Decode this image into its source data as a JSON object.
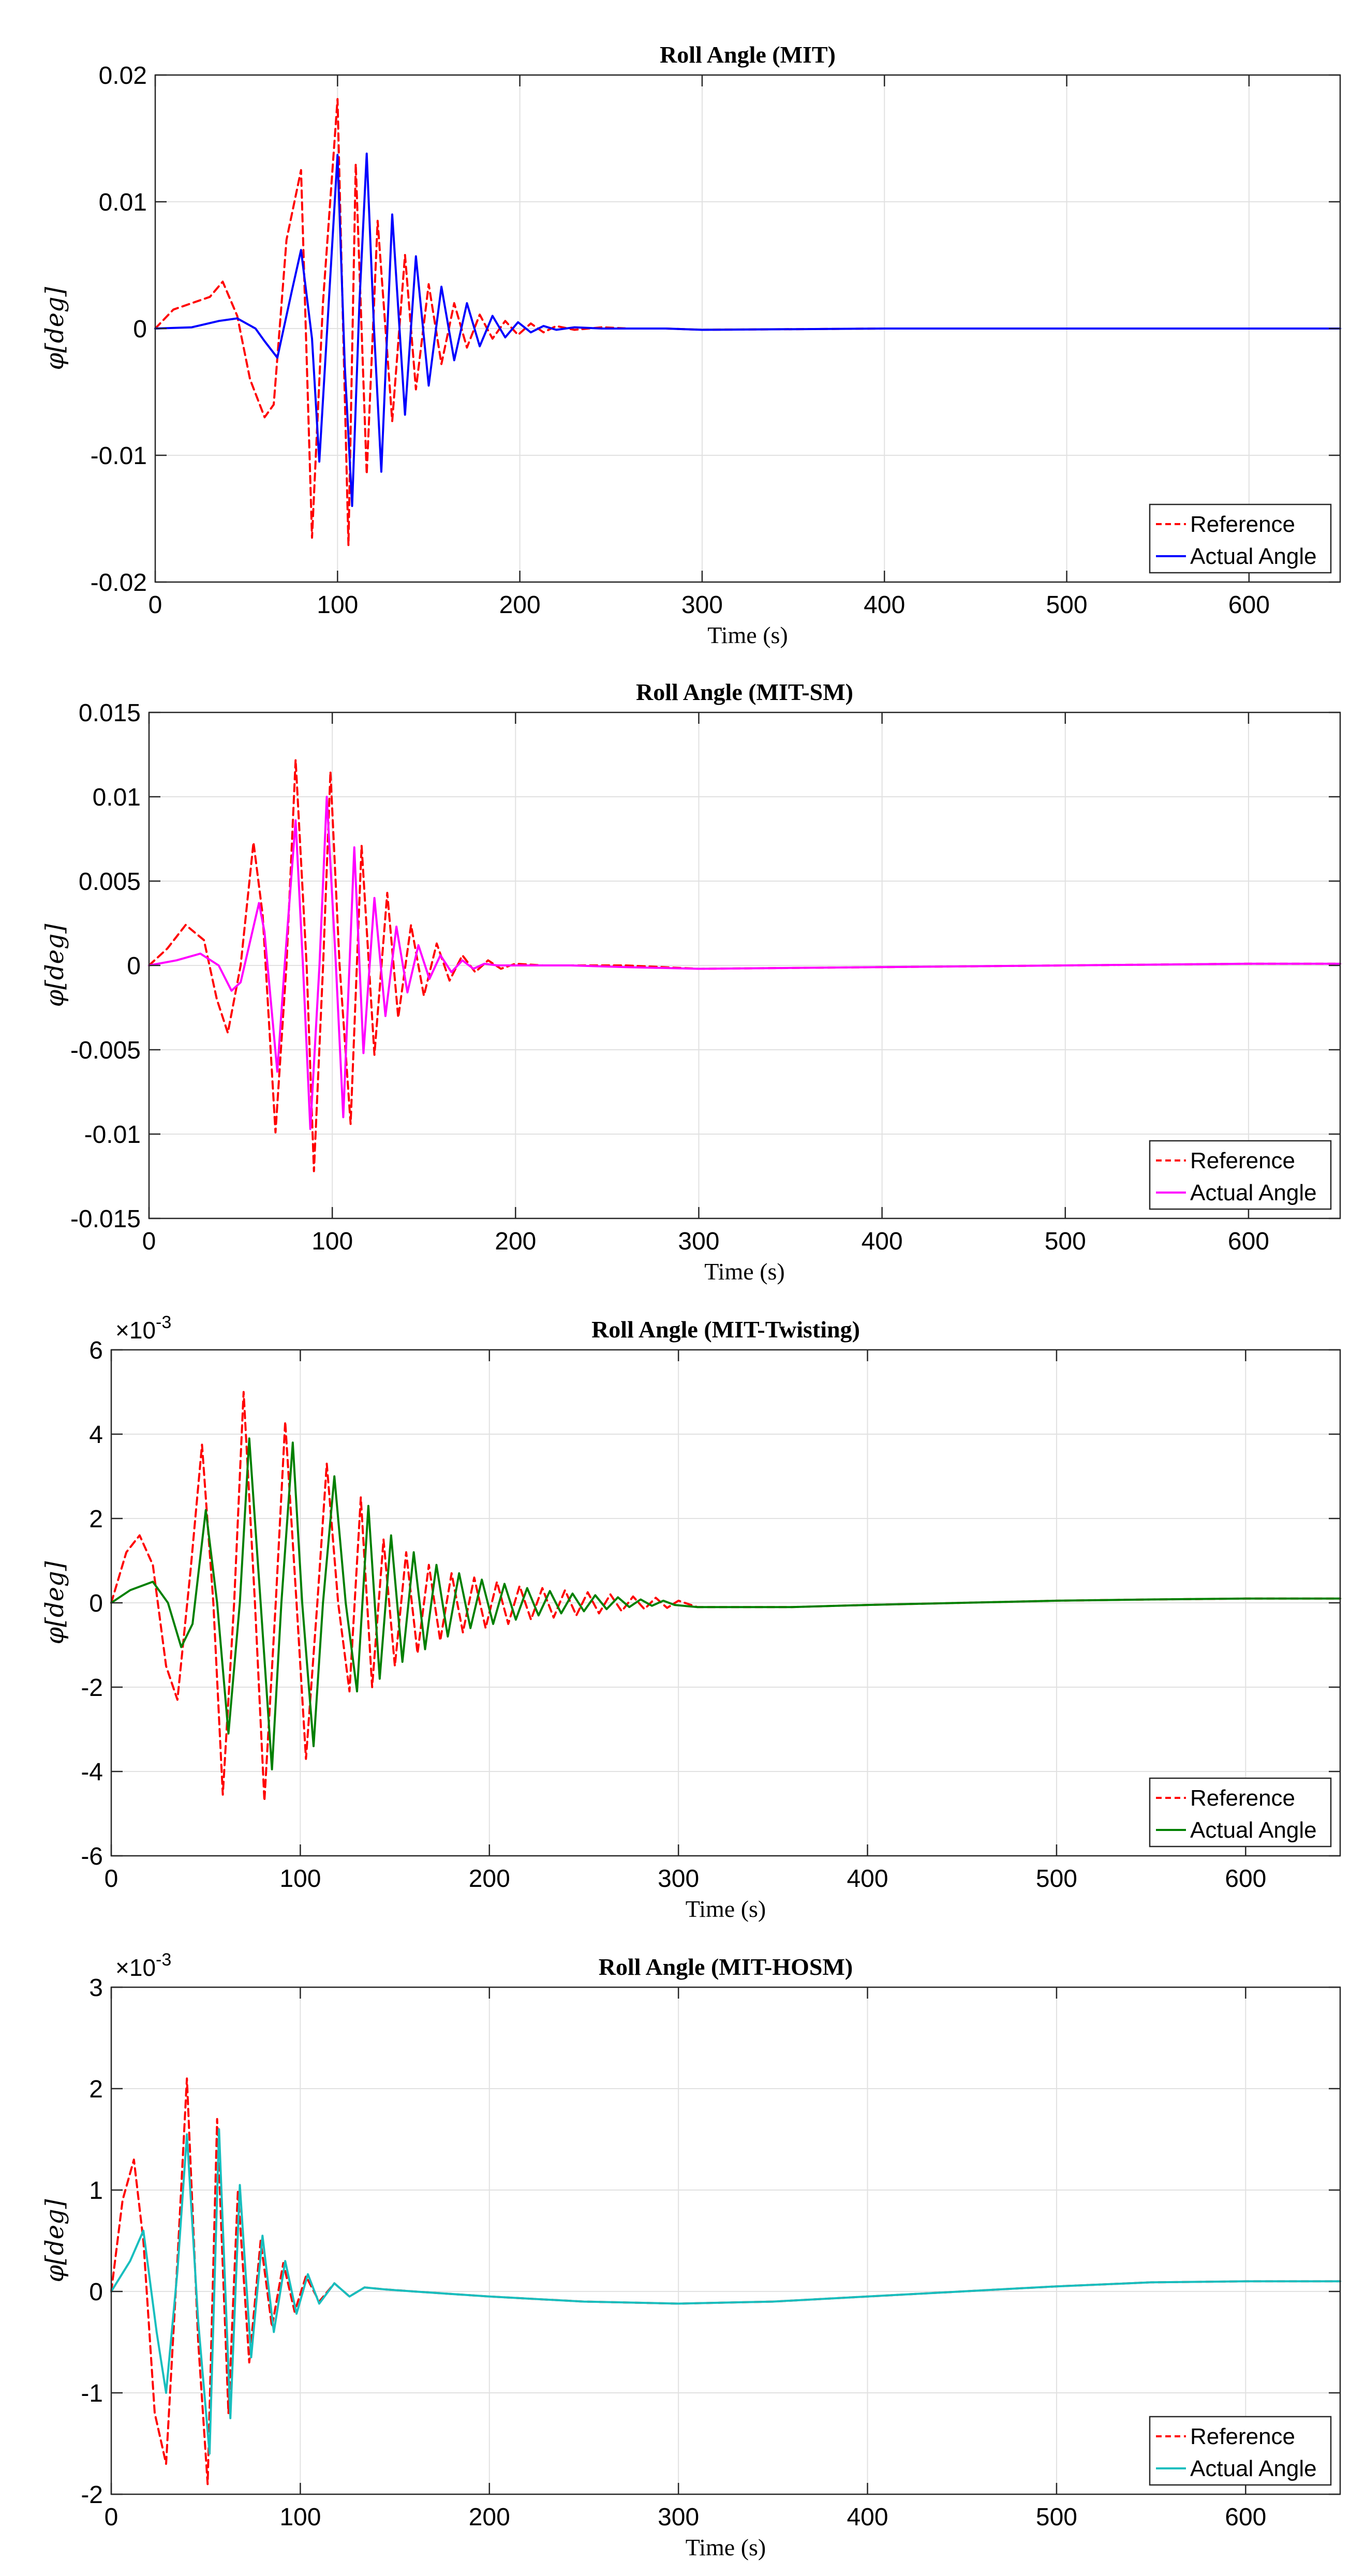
{
  "chart_data": [
    {
      "type": "line",
      "title": "Roll Angle (MIT)",
      "xlabel": "Time (s)",
      "ylabel": "φ[deg]",
      "xlim": [
        0,
        650
      ],
      "ylim": [
        -0.02,
        0.02
      ],
      "xticks": [
        0,
        100,
        200,
        300,
        400,
        500,
        600
      ],
      "xtick_labels": [
        "0",
        "100",
        "200",
        "300",
        "400",
        "500",
        "600"
      ],
      "yticks": [
        -0.02,
        -0.01,
        0,
        0.01,
        0.02
      ],
      "ytick_labels": [
        "-0.02",
        "-0.01",
        "0",
        "0.01",
        "0.02"
      ],
      "exponent_label": "",
      "grid": true,
      "legend_position": "bottom-right",
      "series": [
        {
          "name": "Reference",
          "style": "dashed",
          "color": "#ff0000",
          "x": [
            0,
            10,
            20,
            30,
            37,
            45,
            52,
            60,
            65,
            72,
            80,
            86,
            92,
            100,
            106,
            110,
            116,
            122,
            130,
            137,
            143,
            150,
            157,
            164,
            171,
            178,
            185,
            192,
            199,
            206,
            213,
            220,
            230,
            245,
            260,
            280,
            300,
            400,
            500,
            600,
            650
          ],
          "values": [
            0,
            0.0015,
            0.002,
            0.0025,
            0.0037,
            0.001,
            -0.004,
            -0.007,
            -0.006,
            0.007,
            0.0125,
            -0.0165,
            0.002,
            0.0181,
            -0.0171,
            0.013,
            -0.0115,
            0.0085,
            -0.0073,
            0.0058,
            -0.0048,
            0.0035,
            -0.0028,
            0.002,
            -0.0015,
            0.0011,
            -0.0008,
            0.0006,
            -0.0005,
            0.0004,
            -0.0003,
            0.0002,
            -0.0001,
            0.0001,
            0,
            0,
            -0.0001,
            0,
            0,
            0,
            0
          ]
        },
        {
          "name": "Actual Angle",
          "style": "solid",
          "color": "#0000ff",
          "x": [
            0,
            20,
            35,
            45,
            55,
            60,
            67,
            75,
            80,
            86,
            90,
            96,
            100,
            104,
            108,
            112,
            116,
            120,
            124,
            130,
            137,
            143,
            150,
            157,
            164,
            171,
            178,
            185,
            192,
            199,
            206,
            213,
            220,
            230,
            245,
            260,
            280,
            300,
            400,
            500,
            600,
            650
          ],
          "values": [
            0,
            0.0001,
            0.0006,
            0.0008,
            0,
            -0.001,
            -0.0023,
            0.003,
            0.0062,
            -0.0008,
            -0.0105,
            0.004,
            0.0137,
            -0.003,
            -0.014,
            0.002,
            0.0138,
            0,
            -0.0113,
            0.009,
            -0.0068,
            0.0057,
            -0.0045,
            0.0033,
            -0.0025,
            0.002,
            -0.0014,
            0.001,
            -0.0007,
            0.0005,
            -0.0003,
            0.0002,
            -0.0001,
            0.0001,
            0,
            0,
            0,
            -0.0001,
            0,
            0,
            0,
            0
          ]
        }
      ]
    },
    {
      "type": "line",
      "title": "Roll Angle (MIT-SM)",
      "xlabel": "Time (s)",
      "ylabel": "φ[deg]",
      "xlim": [
        0,
        650
      ],
      "ylim": [
        -0.015,
        0.015
      ],
      "xticks": [
        0,
        100,
        200,
        300,
        400,
        500,
        600
      ],
      "xtick_labels": [
        "0",
        "100",
        "200",
        "300",
        "400",
        "500",
        "600"
      ],
      "yticks": [
        -0.015,
        -0.01,
        -0.005,
        0,
        0.005,
        0.01,
        0.015
      ],
      "ytick_labels": [
        "-0.015",
        "-0.01",
        "-0.005",
        "0",
        "0.005",
        "0.01",
        "0.015"
      ],
      "exponent_label": "",
      "grid": true,
      "legend_position": "bottom-right",
      "series": [
        {
          "name": "Reference",
          "style": "dashed",
          "color": "#ff0000",
          "x": [
            0,
            10,
            20,
            30,
            37,
            43,
            50,
            57,
            62,
            69,
            75,
            80,
            86,
            90,
            95,
            99,
            104,
            110,
            116,
            123,
            130,
            136,
            143,
            150,
            157,
            164,
            171,
            178,
            185,
            192,
            200,
            215,
            230,
            260,
            300,
            400,
            500,
            600,
            650
          ],
          "values": [
            0,
            0.001,
            0.0024,
            0.0015,
            -0.002,
            -0.004,
            0,
            0.0073,
            0.003,
            -0.0099,
            0,
            0.0122,
            0,
            -0.0122,
            0,
            0.0115,
            0,
            -0.0094,
            0.0071,
            -0.0053,
            0.0043,
            -0.0031,
            0.0024,
            -0.0018,
            0.0013,
            -0.0009,
            0.0006,
            -0.0004,
            0.0003,
            -0.0002,
            0.0001,
            0,
            0,
            0,
            -0.0002,
            -0.0001,
            0,
            0.0001,
            0.0001
          ]
        },
        {
          "name": "Actual Angle",
          "style": "solid",
          "color": "#ff00ff",
          "x": [
            0,
            15,
            28,
            38,
            45,
            50,
            60,
            63,
            70,
            74,
            80,
            84,
            88,
            93,
            97,
            102,
            106,
            112,
            117,
            123,
            129,
            135,
            141,
            147,
            153,
            159,
            165,
            171,
            177,
            183,
            190,
            200,
            215,
            230,
            260,
            300,
            400,
            500,
            600,
            650
          ],
          "values": [
            0,
            0.0003,
            0.0007,
            0,
            -0.0015,
            -0.001,
            0.0037,
            0.002,
            -0.0063,
            0,
            0.0086,
            0,
            -0.0097,
            0,
            0.01,
            0,
            -0.009,
            0.007,
            -0.0052,
            0.004,
            -0.003,
            0.0023,
            -0.0016,
            0.0012,
            -0.0008,
            0.0006,
            -0.0004,
            0.0003,
            -0.0002,
            0.0001,
            0,
            0,
            0,
            0,
            -0.0001,
            -0.0002,
            -0.0001,
            0,
            0.0001,
            0.0001
          ]
        }
      ]
    },
    {
      "type": "line",
      "title": "Roll Angle (MIT-Twisting)",
      "xlabel": "Time (s)",
      "ylabel": "φ[deg]",
      "xlim": [
        0,
        650
      ],
      "ylim": [
        -6,
        6
      ],
      "xticks": [
        0,
        100,
        200,
        300,
        400,
        500,
        600
      ],
      "xtick_labels": [
        "0",
        "100",
        "200",
        "300",
        "400",
        "500",
        "600"
      ],
      "yticks": [
        -6,
        -4,
        -2,
        0,
        2,
        4,
        6
      ],
      "ytick_labels": [
        "-6",
        "-4",
        "-2",
        "0",
        "2",
        "4",
        "6"
      ],
      "exponent_label": "×10",
      "exponent_power": "-3",
      "grid": true,
      "legend_position": "bottom-right",
      "series": [
        {
          "name": "Reference",
          "style": "dashed",
          "color": "#ff0000",
          "x": [
            0,
            8,
            15,
            22,
            29,
            35,
            42,
            48,
            54,
            59,
            65,
            70,
            76,
            81,
            87,
            92,
            98,
            103,
            109,
            114,
            120,
            126,
            132,
            138,
            144,
            150,
            156,
            162,
            168,
            174,
            180,
            186,
            192,
            198,
            204,
            210,
            216,
            222,
            228,
            234,
            240,
            246,
            252,
            258,
            264,
            270,
            276,
            282,
            288,
            294,
            300,
            310,
            330,
            360,
            400,
            450,
            500,
            550,
            600,
            650
          ],
          "values": [
            0,
            1.2,
            1.6,
            0.9,
            -1.5,
            -2.3,
            0.8,
            3.75,
            0,
            -4.55,
            0,
            5.0,
            0,
            -4.7,
            0,
            4.3,
            0,
            -3.7,
            0,
            3.3,
            0,
            -2.1,
            2.5,
            -2.0,
            1.5,
            -1.5,
            1.2,
            -1.2,
            0.9,
            -0.9,
            0.7,
            -0.7,
            0.6,
            -0.6,
            0.5,
            -0.5,
            0.4,
            -0.4,
            0.35,
            -0.35,
            0.3,
            -0.3,
            0.25,
            -0.25,
            0.2,
            -0.2,
            0.15,
            -0.15,
            0.12,
            -0.12,
            0.05,
            -0.1,
            -0.1,
            -0.1,
            -0.05,
            0,
            0.05,
            0.08,
            0.1,
            0.1
          ]
        },
        {
          "name": "Actual Angle",
          "style": "solid",
          "color": "#008000",
          "x": [
            0,
            10,
            22,
            30,
            37,
            43,
            50,
            56,
            62,
            68,
            73,
            79,
            85,
            90,
            96,
            101,
            107,
            112,
            118,
            124,
            130,
            136,
            142,
            148,
            154,
            160,
            166,
            172,
            178,
            184,
            190,
            196,
            202,
            208,
            214,
            220,
            226,
            232,
            238,
            244,
            250,
            256,
            262,
            268,
            274,
            280,
            286,
            292,
            298,
            310,
            330,
            360,
            400,
            450,
            500,
            550,
            600,
            650
          ],
          "values": [
            0,
            0.3,
            0.5,
            0,
            -1.05,
            -0.5,
            2.2,
            0,
            -3.1,
            0,
            3.9,
            0,
            -3.95,
            0,
            3.8,
            0,
            -3.4,
            0,
            3.0,
            0,
            -2.1,
            2.3,
            -1.8,
            1.6,
            -1.4,
            1.2,
            -1.1,
            0.9,
            -0.8,
            0.7,
            -0.6,
            0.55,
            -0.5,
            0.45,
            -0.4,
            0.35,
            -0.3,
            0.28,
            -0.25,
            0.22,
            -0.2,
            0.18,
            -0.15,
            0.13,
            -0.1,
            0.08,
            -0.07,
            0.05,
            -0.05,
            -0.1,
            -0.1,
            -0.1,
            -0.05,
            0,
            0.05,
            0.08,
            0.1,
            0.1
          ]
        }
      ]
    },
    {
      "type": "line",
      "title": "Roll Angle (MIT-HOSM)",
      "xlabel": "Time (s)",
      "ylabel": "φ[deg]",
      "xlim": [
        0,
        650
      ],
      "ylim": [
        -2,
        3
      ],
      "xticks": [
        0,
        100,
        200,
        300,
        400,
        500,
        600
      ],
      "xtick_labels": [
        "0",
        "100",
        "200",
        "300",
        "400",
        "500",
        "600"
      ],
      "yticks": [
        -2,
        -1,
        0,
        1,
        2,
        3
      ],
      "ytick_labels": [
        "-2",
        "-1",
        "0",
        "1",
        "2",
        "3"
      ],
      "exponent_label": "×10",
      "exponent_power": "-3",
      "grid": true,
      "legend_position": "bottom-right",
      "series": [
        {
          "name": "Reference",
          "style": "dashed",
          "color": "#ff0000",
          "x": [
            0,
            6,
            12,
            17,
            23,
            29,
            35,
            40,
            46,
            51,
            56,
            62,
            67,
            73,
            79,
            85,
            91,
            97,
            103,
            110,
            118,
            126,
            134,
            145,
            160,
            200,
            250,
            300,
            350,
            400,
            450,
            500,
            550,
            600,
            650
          ],
          "values": [
            0,
            0.9,
            1.3,
            0.5,
            -1.2,
            -1.7,
            0.3,
            2.1,
            -0.5,
            -1.9,
            1.7,
            -1.2,
            1.0,
            -0.7,
            0.5,
            -0.35,
            0.28,
            -0.2,
            0.15,
            -0.1,
            0.08,
            -0.05,
            0.04,
            0.02,
            0,
            -0.05,
            -0.1,
            -0.12,
            -0.1,
            -0.05,
            0,
            0.05,
            0.09,
            0.1,
            0.1
          ]
        },
        {
          "name": "Actual Angle",
          "style": "solid",
          "color": "#17bebe",
          "x": [
            0,
            10,
            17,
            24,
            29,
            35,
            40,
            46,
            52,
            57,
            63,
            68,
            74,
            80,
            86,
            92,
            98,
            104,
            110,
            118,
            126,
            134,
            145,
            160,
            200,
            250,
            300,
            350,
            400,
            450,
            500,
            550,
            600,
            650
          ],
          "values": [
            0,
            0.3,
            0.6,
            -0.4,
            -1.0,
            0.2,
            1.55,
            -0.3,
            -1.6,
            1.6,
            -1.25,
            1.05,
            -0.65,
            0.55,
            -0.4,
            0.3,
            -0.22,
            0.17,
            -0.12,
            0.08,
            -0.05,
            0.04,
            0.02,
            0,
            -0.05,
            -0.1,
            -0.12,
            -0.1,
            -0.05,
            0,
            0.05,
            0.09,
            0.1,
            0.1
          ]
        }
      ]
    }
  ]
}
